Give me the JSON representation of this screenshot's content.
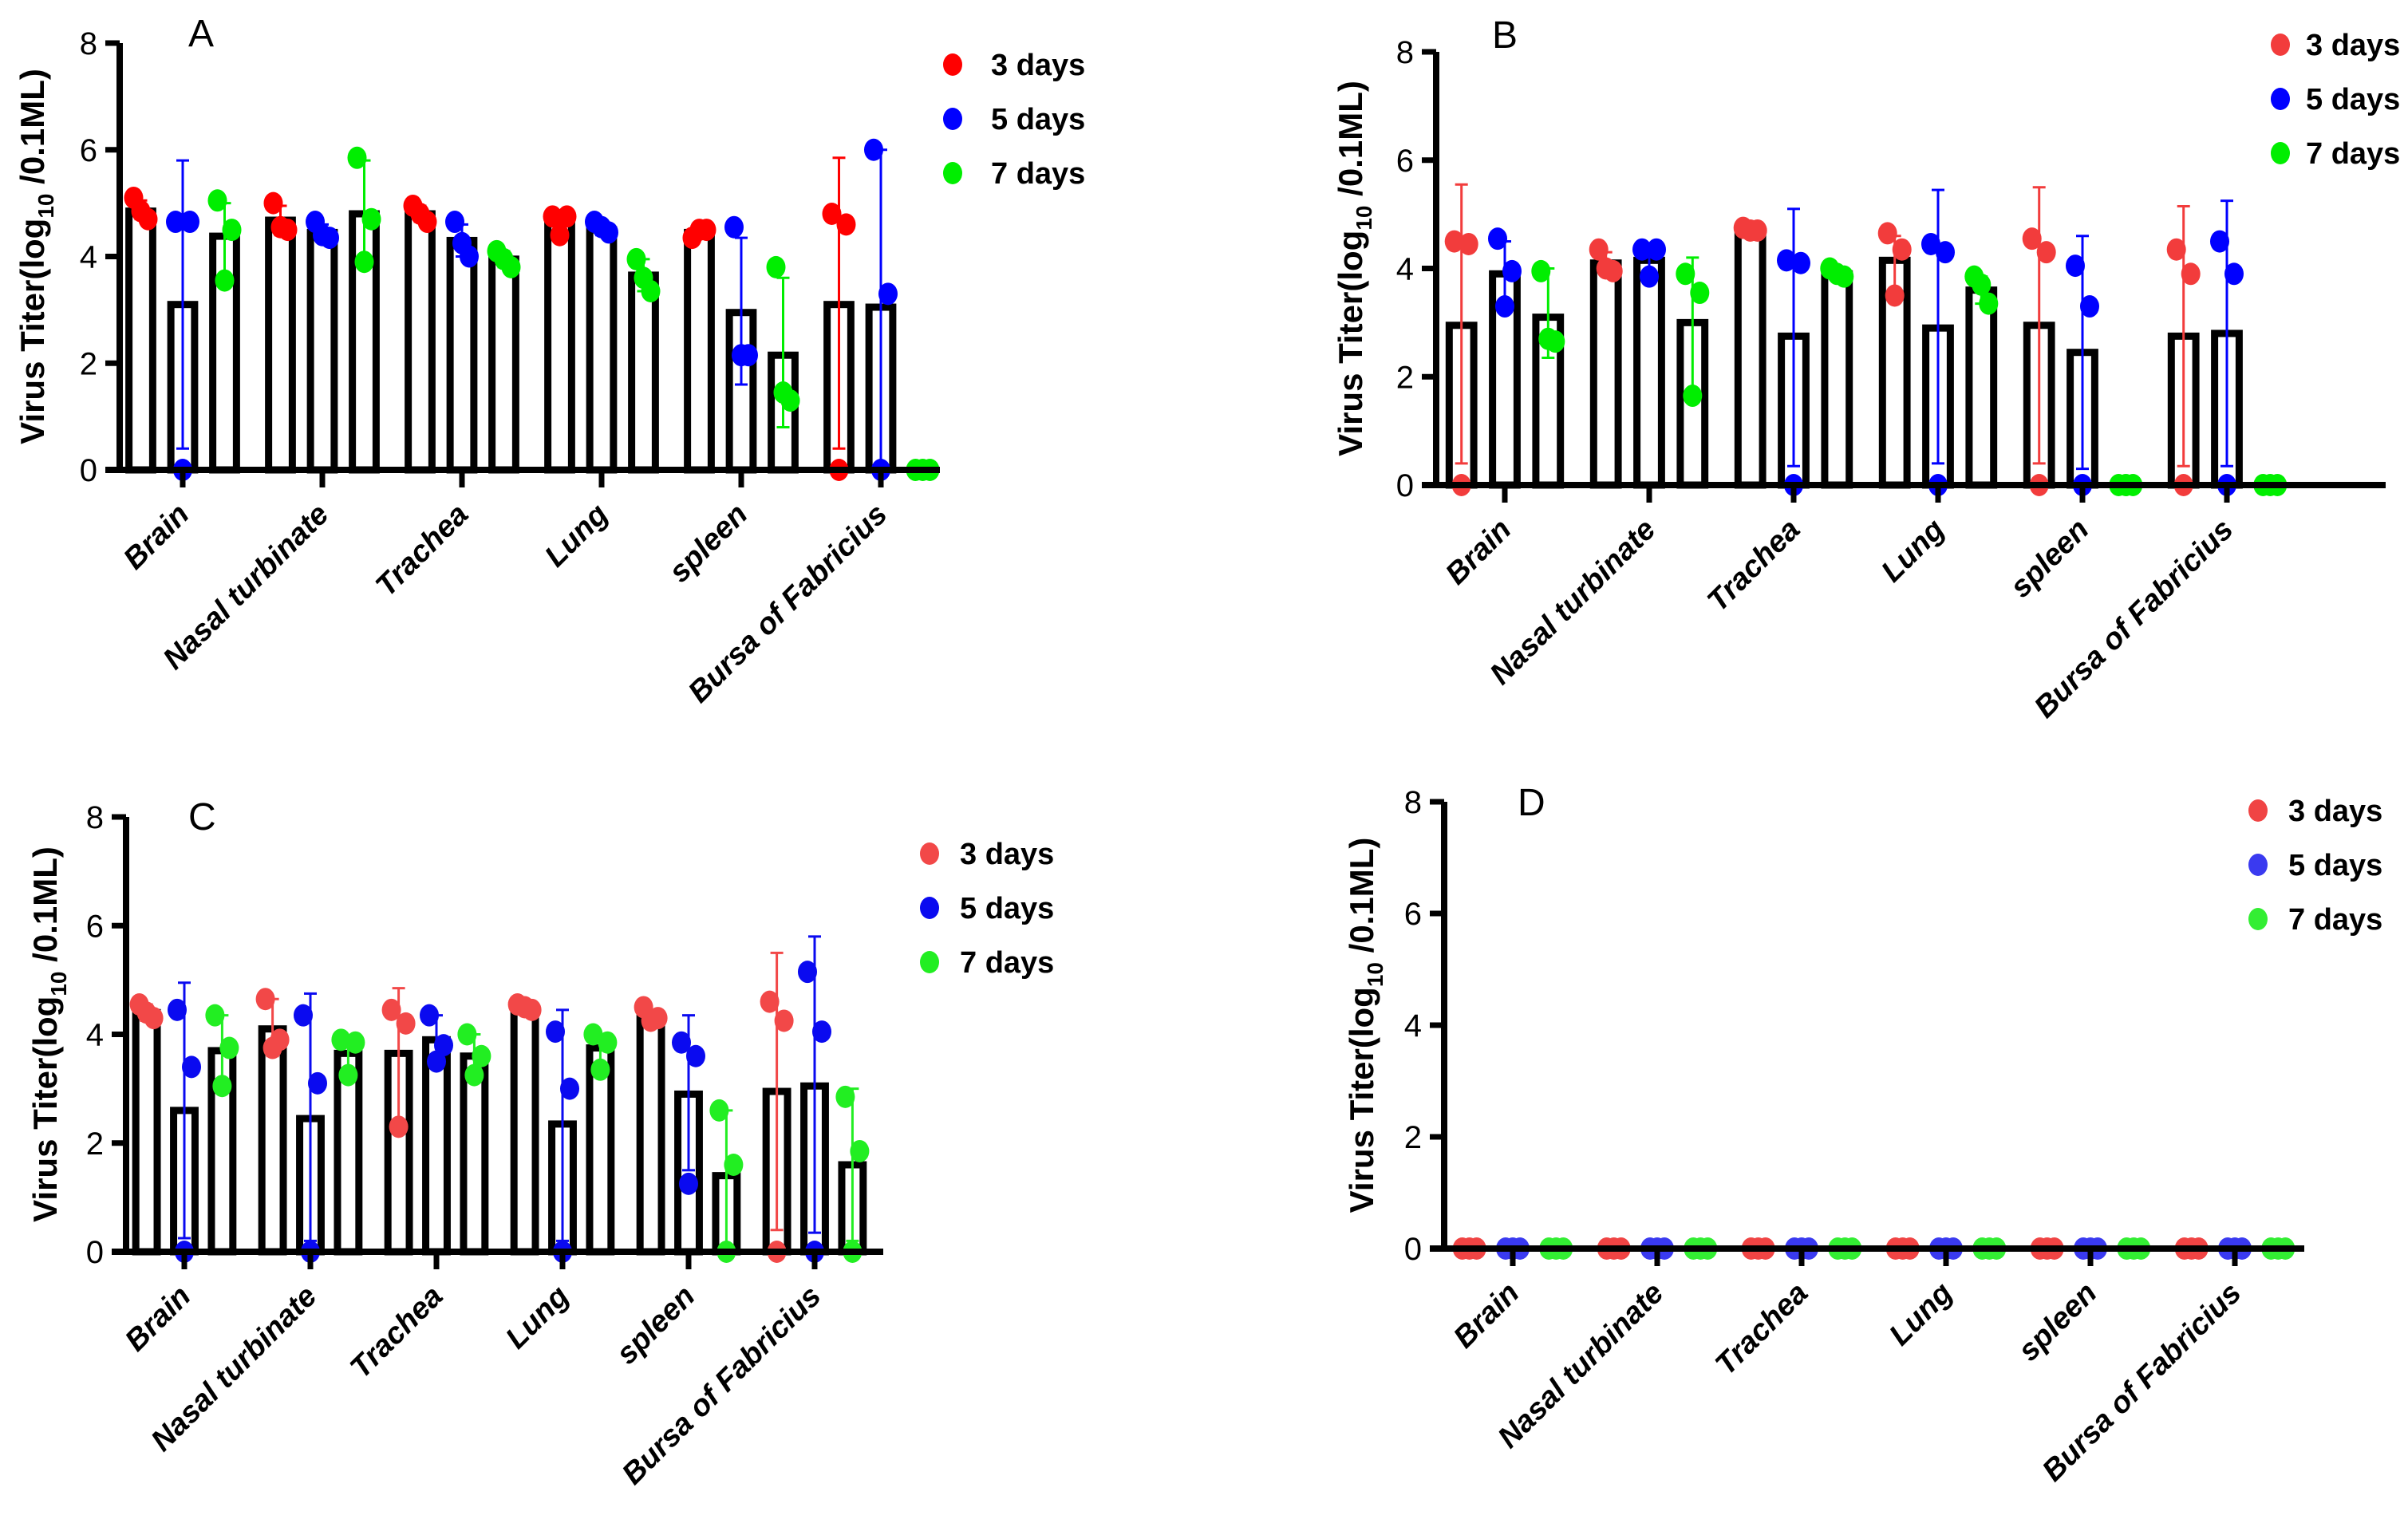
{
  "chart_data": [
    {
      "type": "bar",
      "panel": "A",
      "title": "A",
      "ylabel": {
        "prefix": "Virus Titer(log",
        "sub": "10",
        "suffix": " /0.1ML)"
      },
      "ylim": [
        0,
        8
      ],
      "yticks": [
        "0",
        "2",
        "4",
        "6",
        "8"
      ],
      "categories": [
        "Brain",
        "Nasal turbinate",
        "Trachea",
        "Lung",
        "spleen",
        "Bursa of Fabricius"
      ],
      "legend": "top-right",
      "series": [
        {
          "name": "3 days",
          "color": "#ff0000",
          "means": [
            4.85,
            4.68,
            4.8,
            4.65,
            4.45,
            3.1
          ],
          "points": [
            [
              5.1,
              4.7,
              4.85
            ],
            [
              5.0,
              4.5,
              4.55
            ],
            [
              4.95,
              4.65,
              4.8
            ],
            [
              4.75,
              4.75,
              4.4
            ],
            [
              4.35,
              4.5,
              4.5
            ],
            [
              4.8,
              4.6,
              0
            ]
          ],
          "error": [
            [
              4.7,
              5.05
            ],
            [
              4.4,
              4.95
            ],
            [
              4.65,
              4.95
            ],
            [
              4.45,
              4.85
            ],
            [
              4.35,
              4.55
            ],
            [
              0.4,
              5.85
            ]
          ]
        },
        {
          "name": "5 days",
          "color": "#0000ff",
          "means": [
            3.1,
            4.45,
            4.3,
            4.5,
            2.95,
            3.05
          ],
          "points": [
            [
              4.65,
              4.65,
              0
            ],
            [
              4.65,
              4.35,
              4.4
            ],
            [
              4.65,
              4.0,
              4.25
            ],
            [
              4.65,
              4.45,
              4.55
            ],
            [
              4.55,
              2.15,
              2.15
            ],
            [
              6.0,
              3.3,
              0
            ]
          ],
          "error": [
            [
              0.4,
              5.8
            ],
            [
              4.3,
              4.6
            ],
            [
              4.0,
              4.6
            ],
            [
              4.4,
              4.6
            ],
            [
              1.6,
              4.35
            ],
            [
              0,
              6.0
            ]
          ]
        },
        {
          "name": "7 days",
          "color": "#00ee00",
          "means": [
            4.38,
            4.8,
            3.95,
            3.65,
            2.15,
            0
          ],
          "points": [
            [
              5.05,
              4.5,
              3.55
            ],
            [
              5.85,
              4.7,
              3.9
            ],
            [
              4.1,
              3.8,
              3.95
            ],
            [
              3.95,
              3.35,
              3.6
            ],
            [
              3.8,
              1.3,
              1.45
            ],
            [
              0,
              0,
              0
            ]
          ],
          "error": [
            [
              3.6,
              5.0
            ],
            [
              3.9,
              5.8
            ],
            [
              3.8,
              4.1
            ],
            [
              3.35,
              3.95
            ],
            [
              0.8,
              3.6
            ],
            [
              0,
              0
            ]
          ]
        }
      ]
    },
    {
      "type": "bar",
      "panel": "B",
      "title": "B",
      "ylabel": {
        "prefix": "Virus Titer(log",
        "sub": "10",
        "suffix": " /0.1ML)"
      },
      "ylim": [
        0,
        8
      ],
      "yticks": [
        "0",
        "2",
        "4",
        "6",
        "8"
      ],
      "categories": [
        "Brain",
        "Nasal turbinate",
        "Trachea",
        "Lung",
        "spleen",
        "Bursa of Fabricius"
      ],
      "legend": "top-right",
      "series": [
        {
          "name": "3 days",
          "color": "#f23c3c",
          "means": [
            2.95,
            4.1,
            4.7,
            4.15,
            2.95,
            2.75
          ],
          "points": [
            [
              4.5,
              4.45,
              0
            ],
            [
              4.35,
              3.95,
              4.0
            ],
            [
              4.75,
              4.7,
              4.7
            ],
            [
              4.65,
              4.35,
              3.5
            ],
            [
              4.55,
              4.3,
              0
            ],
            [
              4.35,
              3.9,
              0
            ]
          ],
          "error": [
            [
              0.4,
              5.55
            ],
            [
              3.95,
              4.3
            ],
            [
              4.65,
              4.75
            ],
            [
              3.6,
              4.6
            ],
            [
              0.4,
              5.5
            ],
            [
              0.35,
              5.15
            ]
          ]
        },
        {
          "name": "5 days",
          "color": "#0000ff",
          "means": [
            3.9,
            4.15,
            2.75,
            2.9,
            2.45,
            2.8
          ],
          "points": [
            [
              4.55,
              3.95,
              3.3
            ],
            [
              4.35,
              4.35,
              3.85
            ],
            [
              4.15,
              4.1,
              0
            ],
            [
              4.45,
              4.3,
              0
            ],
            [
              4.05,
              3.3,
              0
            ],
            [
              4.5,
              3.9,
              0
            ]
          ],
          "error": [
            [
              3.35,
              4.5
            ],
            [
              3.9,
              4.35
            ],
            [
              0.35,
              5.1
            ],
            [
              0.4,
              5.45
            ],
            [
              0.3,
              4.6
            ],
            [
              0.35,
              5.25
            ]
          ]
        },
        {
          "name": "7 days",
          "color": "#00ee00",
          "means": [
            3.1,
            3.0,
            3.9,
            3.6,
            0,
            0
          ],
          "points": [
            [
              3.95,
              2.65,
              2.7
            ],
            [
              3.9,
              3.55,
              1.65
            ],
            [
              4.0,
              3.85,
              3.9
            ],
            [
              3.85,
              3.35,
              3.7
            ],
            [
              0,
              0,
              0
            ],
            [
              0,
              0,
              0
            ]
          ],
          "error": [
            [
              2.35,
              4.0
            ],
            [
              1.7,
              4.2
            ],
            [
              3.8,
              4.0
            ],
            [
              3.35,
              3.85
            ],
            [
              0,
              0
            ],
            [
              0,
              0
            ]
          ]
        }
      ]
    },
    {
      "type": "bar",
      "panel": "C",
      "title": "C",
      "ylabel": {
        "prefix": "Virus Titer(log",
        "sub": "10",
        "suffix": " /0.1ML)"
      },
      "ylim": [
        0,
        8
      ],
      "yticks": [
        "0",
        "2",
        "4",
        "6",
        "8"
      ],
      "categories": [
        "Brain",
        "Nasal turbinate",
        "Trachea",
        "Lung",
        "spleen",
        "Bursa of Fabricius"
      ],
      "legend": "top-right",
      "series": [
        {
          "name": "3 days",
          "color": "#f24848",
          "means": [
            4.4,
            4.1,
            3.65,
            4.5,
            4.3,
            2.95
          ],
          "points": [
            [
              4.55,
              4.3,
              4.4
            ],
            [
              4.65,
              3.9,
              3.75
            ],
            [
              4.45,
              4.2,
              2.3
            ],
            [
              4.55,
              4.45,
              4.5
            ],
            [
              4.5,
              4.3,
              4.25
            ],
            [
              4.6,
              4.25,
              0
            ]
          ],
          "error": [
            [
              4.25,
              4.55
            ],
            [
              3.6,
              4.65
            ],
            [
              2.4,
              4.85
            ],
            [
              4.4,
              4.55
            ],
            [
              4.2,
              4.45
            ],
            [
              0.4,
              5.5
            ]
          ]
        },
        {
          "name": "5 days",
          "color": "#0a0af0",
          "means": [
            2.6,
            2.45,
            3.9,
            2.35,
            2.9,
            3.05
          ],
          "points": [
            [
              4.45,
              3.4,
              0
            ],
            [
              4.35,
              3.1,
              0
            ],
            [
              4.35,
              3.8,
              3.5
            ],
            [
              4.05,
              3.0,
              0
            ],
            [
              3.85,
              3.6,
              1.25
            ],
            [
              5.15,
              4.05,
              0
            ]
          ],
          "error": [
            [
              0.25,
              4.95
            ],
            [
              0.2,
              4.75
            ],
            [
              3.5,
              4.35
            ],
            [
              0.2,
              4.45
            ],
            [
              1.5,
              4.35
            ],
            [
              0.35,
              5.8
            ]
          ]
        },
        {
          "name": "7 days",
          "color": "#22ee22",
          "means": [
            3.7,
            3.65,
            3.6,
            3.75,
            1.4,
            1.6
          ],
          "points": [
            [
              4.35,
              3.75,
              3.05
            ],
            [
              3.9,
              3.85,
              3.25
            ],
            [
              4.0,
              3.6,
              3.25
            ],
            [
              4.0,
              3.85,
              3.35
            ],
            [
              2.6,
              1.6,
              0
            ],
            [
              2.85,
              1.85,
              0
            ]
          ],
          "error": [
            [
              3.05,
              4.35
            ],
            [
              3.25,
              3.95
            ],
            [
              3.25,
              4.0
            ],
            [
              3.35,
              4.0
            ],
            [
              0,
              2.6
            ],
            [
              0.2,
              3.0
            ]
          ]
        }
      ]
    },
    {
      "type": "bar",
      "panel": "D",
      "title": "D",
      "ylabel": {
        "prefix": "Virus Titer(log",
        "sub": "10",
        "suffix": " /0.1ML)"
      },
      "ylim": [
        0,
        8
      ],
      "yticks": [
        "0",
        "2",
        "4",
        "6",
        "8"
      ],
      "categories": [
        "Brain",
        "Nasal turbinate",
        "Trachea",
        "Lung",
        "spleen",
        "Bursa of Fabricius"
      ],
      "legend": "top-right",
      "series": [
        {
          "name": "3 days",
          "color": "#f04444",
          "means": [
            0,
            0,
            0,
            0,
            0,
            0
          ],
          "points": [
            [
              0,
              0,
              0
            ],
            [
              0,
              0,
              0
            ],
            [
              0,
              0,
              0
            ],
            [
              0,
              0,
              0
            ],
            [
              0,
              0,
              0
            ],
            [
              0,
              0,
              0
            ]
          ],
          "error": [
            [
              0,
              0
            ],
            [
              0,
              0
            ],
            [
              0,
              0
            ],
            [
              0,
              0
            ],
            [
              0,
              0
            ],
            [
              0,
              0
            ]
          ]
        },
        {
          "name": "5 days",
          "color": "#3a3af0",
          "means": [
            0,
            0,
            0,
            0,
            0,
            0
          ],
          "points": [
            [
              0,
              0,
              0
            ],
            [
              0,
              0,
              0
            ],
            [
              0,
              0,
              0
            ],
            [
              0,
              0,
              0
            ],
            [
              0,
              0,
              0
            ],
            [
              0,
              0,
              0
            ]
          ],
          "error": [
            [
              0,
              0
            ],
            [
              0,
              0
            ],
            [
              0,
              0
            ],
            [
              0,
              0
            ],
            [
              0,
              0
            ],
            [
              0,
              0
            ]
          ]
        },
        {
          "name": "7 days",
          "color": "#33ee33",
          "means": [
            0,
            0,
            0,
            0,
            0,
            0
          ],
          "points": [
            [
              0,
              0,
              0
            ],
            [
              0,
              0,
              0
            ],
            [
              0,
              0,
              0
            ],
            [
              0,
              0,
              0
            ],
            [
              0,
              0,
              0
            ],
            [
              0,
              0,
              0
            ]
          ],
          "error": [
            [
              0,
              0
            ],
            [
              0,
              0
            ],
            [
              0,
              0
            ],
            [
              0,
              0
            ],
            [
              0,
              0
            ],
            [
              0,
              0
            ]
          ]
        }
      ]
    }
  ]
}
